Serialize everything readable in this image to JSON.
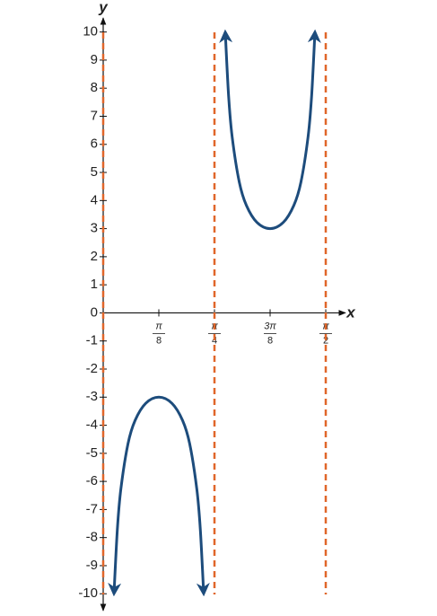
{
  "chart_data": {
    "type": "line",
    "x_label": "x",
    "y_label": "y",
    "x": [
      0.0762,
      0.1,
      0.125,
      0.175,
      0.225,
      0.3,
      0.3927,
      0.4854,
      0.5604,
      0.6104,
      0.6604,
      0.6854,
      0.7092,
      0.7854,
      0.8616,
      0.8854,
      0.9104,
      0.9604,
      1.0104,
      1.0854,
      1.1781,
      1.2708,
      1.3458,
      1.3958,
      1.4458,
      1.4708,
      1.4946
    ],
    "series": [
      {
        "color": "#1d4c7c",
        "values": [
          -10,
          -7.7,
          -6.26,
          -4.66,
          -3.83,
          -3.22,
          -3,
          -3.22,
          -3.83,
          -4.66,
          -6.26,
          -7.7,
          -10,
          null,
          10,
          7.7,
          6.26,
          4.66,
          3.83,
          3.22,
          3,
          3.22,
          3.83,
          4.66,
          6.26,
          7.7,
          10
        ]
      }
    ],
    "asymptotes": [
      0,
      0.7854,
      1.5708
    ],
    "asymptote_color": "#e0662a",
    "xlim": [
      0,
      1.71
    ],
    "ylim": [
      -10.6,
      10.5
    ],
    "xticks": [
      {
        "value": 0.3927,
        "label": "π/8"
      },
      {
        "value": 0.7854,
        "label": "π/4"
      },
      {
        "value": 1.1781,
        "label": "3π/8"
      },
      {
        "value": 1.5708,
        "label": "π/2"
      }
    ],
    "yticks": [
      -10,
      -9,
      -8,
      -7,
      -6,
      -5,
      -4,
      -3,
      -2,
      -1,
      0,
      1,
      2,
      3,
      4,
      5,
      6,
      7,
      8,
      9,
      10
    ]
  }
}
